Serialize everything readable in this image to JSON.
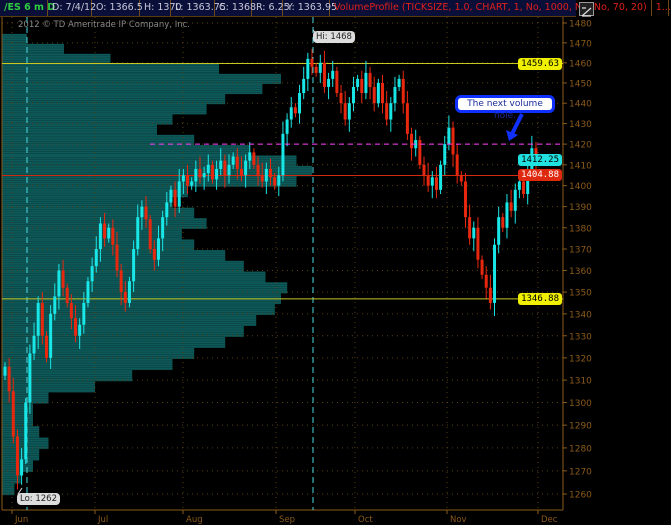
{
  "header": {
    "symbol": "/ES 6 m D",
    "date": "D: 7/4/12",
    "open": "O: 1366.5",
    "high": "H: 1370",
    "low": "L: 1363.75",
    "close": "C: 1368",
    "range": "R: 6.25",
    "y": "Y: 1363.95",
    "study": "VolumeProfile (TICKSIZE, 1.0, CHART, 1, No, 1000, No, No, 70, 20)",
    "more": "1..."
  },
  "copyright": "2012 © TD Ameritrade IP Company, Inc.",
  "annotations": {
    "hi": "Hi: 1468",
    "lo": "Lo: 1262",
    "callout": "The next volume hole."
  },
  "price_labels": [
    {
      "text": "1459.63",
      "value": 1459.63,
      "bg": "#f0f000",
      "fg": "#000000"
    },
    {
      "text": "1412.25",
      "value": 1412.25,
      "bg": "#20e0e0",
      "fg": "#000000"
    },
    {
      "text": "1404.88",
      "value": 1404.88,
      "bg": "#e02a10",
      "fg": "#ffffff"
    },
    {
      "text": "1346.88",
      "value": 1346.88,
      "bg": "#f0f000",
      "fg": "#000000"
    }
  ],
  "colors": {
    "up": "#19e6e6",
    "down": "#e8280e",
    "profile": "#0e5a5a",
    "axis": "#8a5a1a",
    "grid": "#5a4010",
    "value_area": "#c8c820",
    "poc": "#d02a10",
    "target": "#ff40ff"
  },
  "chart_data": {
    "type": "candlestick",
    "title": "",
    "y_scale": "log",
    "ylim": [
      1255,
      1485
    ],
    "y_ticks": [
      1260,
      1270,
      1280,
      1290,
      1300,
      1310,
      1320,
      1330,
      1340,
      1350,
      1360,
      1370,
      1380,
      1390,
      1400,
      1410,
      1420,
      1430,
      1440,
      1450,
      1460,
      1470,
      1480
    ],
    "x_ticks": [
      "Jun",
      "Jul",
      "Aug",
      "Sep",
      "Oct",
      "Nov",
      "Dec"
    ],
    "grid": true,
    "close": [
      1316,
      1305,
      1285,
      1268,
      1275,
      1300,
      1322,
      1330,
      1345,
      1330,
      1320,
      1340,
      1348,
      1360,
      1352,
      1345,
      1338,
      1330,
      1335,
      1345,
      1355,
      1362,
      1370,
      1382,
      1375,
      1380,
      1372,
      1360,
      1350,
      1345,
      1355,
      1370,
      1385,
      1390,
      1384,
      1370,
      1365,
      1375,
      1385,
      1392,
      1398,
      1390,
      1402,
      1405,
      1400,
      1402,
      1408,
      1404,
      1406,
      1410,
      1403,
      1408,
      1412,
      1405,
      1410,
      1414,
      1408,
      1405,
      1412,
      1416,
      1410,
      1405,
      1402,
      1408,
      1404,
      1400,
      1405,
      1425,
      1432,
      1438,
      1435,
      1445,
      1452,
      1462,
      1458,
      1455,
      1460,
      1448,
      1452,
      1456,
      1445,
      1440,
      1432,
      1440,
      1448,
      1452,
      1445,
      1455,
      1448,
      1440,
      1450,
      1440,
      1432,
      1440,
      1448,
      1452,
      1440,
      1425,
      1418,
      1422,
      1410,
      1405,
      1400,
      1404,
      1398,
      1410,
      1420,
      1428,
      1415,
      1405,
      1402,
      1385,
      1375,
      1380,
      1365,
      1358,
      1352,
      1345,
      1372,
      1385,
      1380,
      1392,
      1388,
      1398,
      1402,
      1396,
      1408,
      1418,
      1412
    ],
    "high": 1468,
    "low": 1262,
    "volume_profile": {
      "prices": [
        1262,
        1267,
        1272,
        1277,
        1282,
        1287,
        1292,
        1297,
        1302,
        1307,
        1312,
        1317,
        1322,
        1327,
        1332,
        1337,
        1342,
        1347,
        1352,
        1357,
        1362,
        1367,
        1372,
        1377,
        1382,
        1387,
        1392,
        1397,
        1402,
        1407,
        1412,
        1417,
        1422,
        1427,
        1432,
        1437,
        1442,
        1447,
        1452,
        1457,
        1462,
        1467,
        1472
      ],
      "relative_volume": [
        0.04,
        0.06,
        0.1,
        0.12,
        0.15,
        0.12,
        0.1,
        0.1,
        0.15,
        0.3,
        0.42,
        0.55,
        0.62,
        0.72,
        0.78,
        0.82,
        0.88,
        0.9,
        0.92,
        0.85,
        0.78,
        0.72,
        0.62,
        0.58,
        0.66,
        0.62,
        0.55,
        0.6,
        0.95,
        1.0,
        0.95,
        0.8,
        0.62,
        0.5,
        0.55,
        0.66,
        0.72,
        0.84,
        0.9,
        0.7,
        0.35,
        0.2,
        0.08
      ]
    },
    "levels": {
      "value_area_high": 1459.63,
      "value_area_low": 1346.88,
      "point_of_control": 1404.88,
      "target": 1420
    }
  }
}
